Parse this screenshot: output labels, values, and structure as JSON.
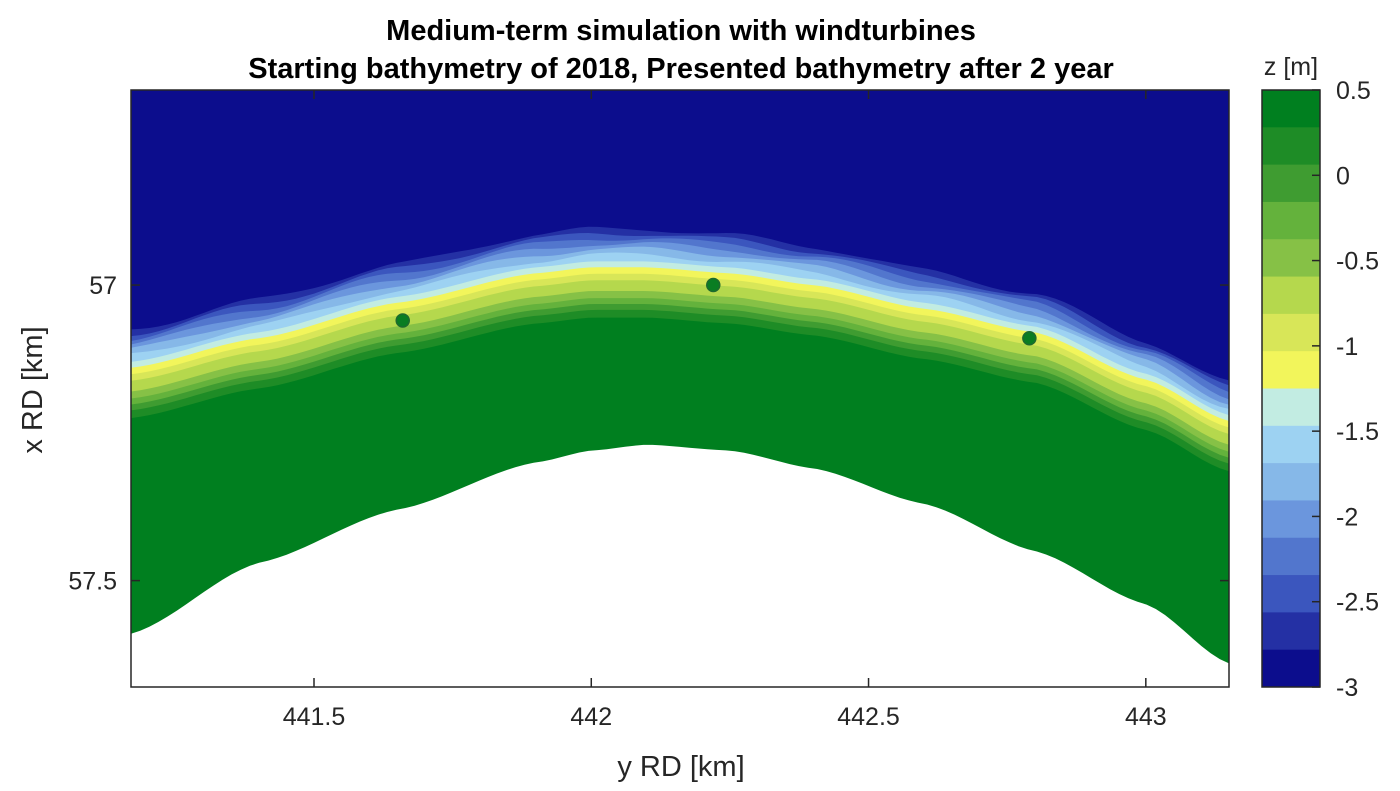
{
  "chart_data": {
    "type": "heatmap",
    "title": "Medium-term simulation with windturbines",
    "subtitle": "Starting bathymetry of 2018, Presented bathymetry after 2 year",
    "xlabel": "y RD [km]",
    "ylabel": "x RD [km]",
    "xlim": [
      441.17,
      443.15
    ],
    "ylim": [
      56.67,
      57.68
    ],
    "y_reversed": true,
    "xticks": [
      441.5,
      442,
      442.5,
      443
    ],
    "xtick_labels": [
      "441.5",
      "442",
      "442.5",
      "443"
    ],
    "yticks": [
      57,
      57.5
    ],
    "ytick_labels": [
      "57",
      "57.5"
    ],
    "colorbar": {
      "label": "z [m]",
      "range": [
        -3,
        0.5
      ],
      "levels": 16,
      "ticks": [
        0.5,
        0,
        -0.5,
        -1,
        -1.5,
        -2,
        -2.5,
        -3
      ],
      "tick_labels": [
        "0.5",
        "0",
        "-0.5",
        "-1",
        "-1.5",
        "-2",
        "-2.5",
        "-3"
      ],
      "colors_top_to_bottom": [
        "#007f1f",
        "#1e8c26",
        "#3f9c31",
        "#64b23c",
        "#86c146",
        "#b5d84d",
        "#d8e658",
        "#f2f55b",
        "#c2ece2",
        "#9dd2f2",
        "#86b8e8",
        "#6b96dd",
        "#5276cd",
        "#3b56be",
        "#2430a4",
        "#0c0d8d"
      ]
    },
    "coastline_x": {
      "y_points": [
        441.17,
        441.4,
        441.65,
        441.9,
        442.0,
        442.1,
        442.25,
        442.4,
        442.6,
        442.8,
        443.0,
        443.15
      ],
      "shore_x": [
        57.18,
        57.13,
        57.07,
        57.02,
        57.01,
        57.01,
        57.02,
        57.04,
        57.08,
        57.12,
        57.2,
        57.27
      ],
      "land_edge_x": [
        57.59,
        57.47,
        57.38,
        57.3,
        57.28,
        57.27,
        57.28,
        57.31,
        57.37,
        57.45,
        57.54,
        57.64
      ]
    },
    "windturbines": [
      {
        "y": 441.66,
        "x": 57.06
      },
      {
        "y": 442.22,
        "x": 57.0
      },
      {
        "y": 442.79,
        "x": 57.09
      }
    ]
  }
}
